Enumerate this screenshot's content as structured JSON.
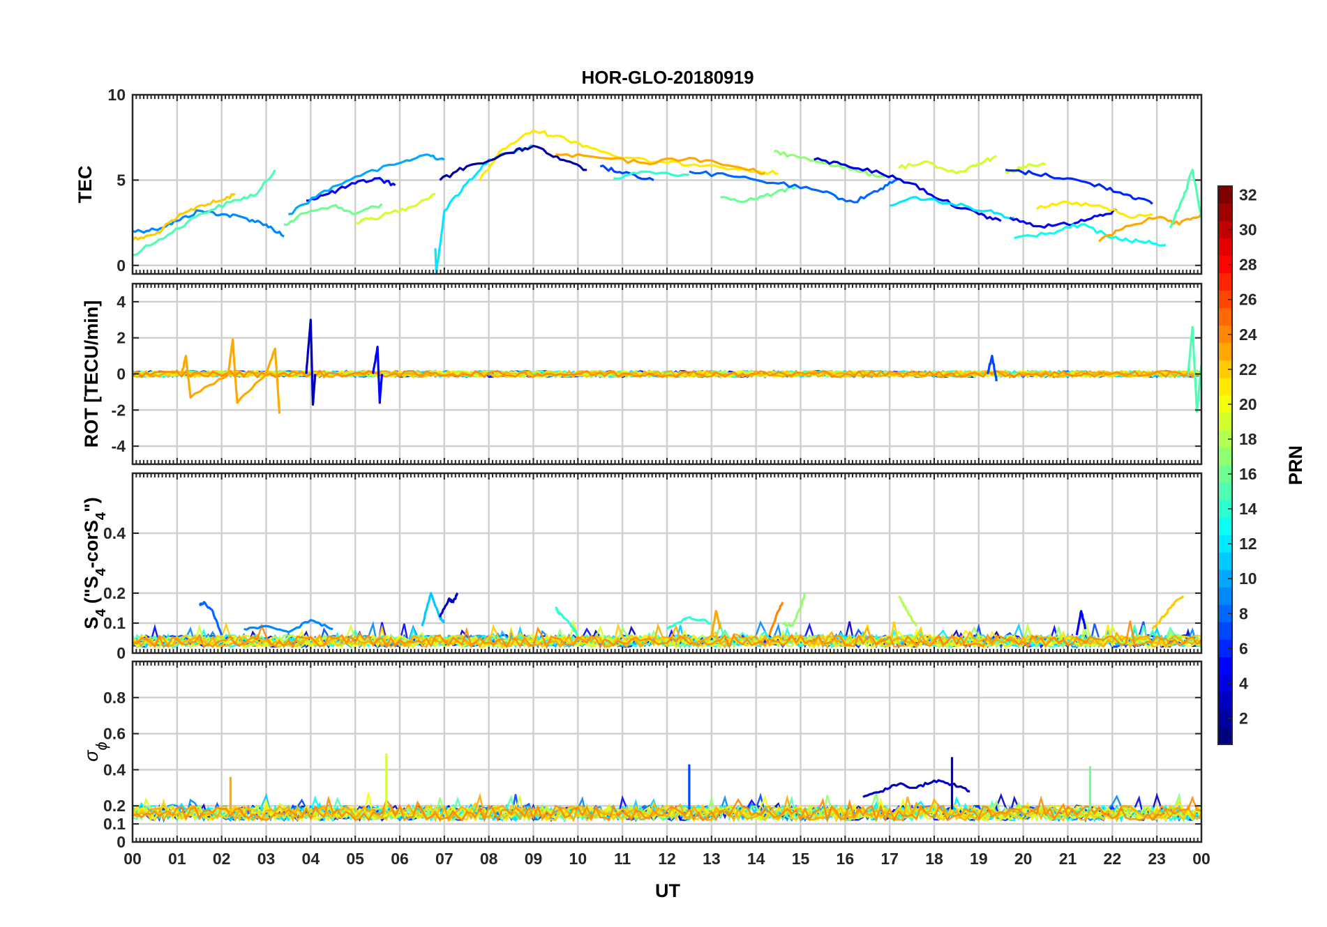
{
  "chart_data": {
    "type": "line",
    "title": "HOR-GLO-20180919",
    "xlabel": "UT",
    "x_tick_labels": [
      "00",
      "01",
      "02",
      "03",
      "04",
      "05",
      "06",
      "07",
      "08",
      "09",
      "10",
      "11",
      "12",
      "13",
      "14",
      "15",
      "16",
      "17",
      "18",
      "19",
      "20",
      "21",
      "22",
      "23",
      "00"
    ],
    "xlim": [
      0,
      24
    ],
    "grid": true,
    "colorbar": {
      "label": "PRN",
      "colormap": "jet",
      "range": [
        1,
        32
      ],
      "tick_labels": [
        "2",
        "4",
        "6",
        "8",
        "10",
        "12",
        "14",
        "16",
        "18",
        "20",
        "22",
        "24",
        "26",
        "28",
        "30",
        "32"
      ],
      "placement": "right"
    },
    "panels": [
      {
        "id": "tec",
        "ylabel": "TEC",
        "ylim": [
          -0.5,
          10
        ],
        "y_ticks": [
          0,
          5,
          10
        ],
        "y_tick_labels": [
          "0",
          "5",
          "10"
        ],
        "series": [
          {
            "prn": 9,
            "x": [
              0,
              0.5,
              1,
              1.5,
              2,
              2.5,
              3,
              3.4
            ],
            "y": [
              2.0,
              2.1,
              2.6,
              3.2,
              3.0,
              2.8,
              2.4,
              1.7
            ]
          },
          {
            "prn": 22,
            "x": [
              0,
              0.5,
              1,
              1.5,
              2,
              2.3
            ],
            "y": [
              1.5,
              1.8,
              2.8,
              3.5,
              3.8,
              4.2
            ]
          },
          {
            "prn": 15,
            "x": [
              0,
              0.8,
              1.5,
              2.2,
              2.8,
              3.2
            ],
            "y": [
              0.6,
              1.8,
              3.0,
              3.7,
              4.2,
              5.6
            ]
          },
          {
            "prn": 16,
            "x": [
              3.4,
              4,
              4.5,
              5,
              5.6
            ],
            "y": [
              2.4,
              3.2,
              3.5,
              3.0,
              3.6
            ]
          },
          {
            "prn": 5,
            "x": [
              3.9,
              4.4,
              5,
              5.5,
              5.9
            ],
            "y": [
              3.8,
              4.2,
              4.8,
              5.1,
              4.7
            ]
          },
          {
            "prn": 10,
            "x": [
              3.5,
              4.2,
              5,
              6,
              6.6,
              7
            ],
            "y": [
              3.0,
              4.2,
              5.2,
              6.0,
              6.5,
              6.2
            ]
          },
          {
            "prn": 19,
            "x": [
              5.0,
              5.6,
              6.2,
              6.8
            ],
            "y": [
              2.5,
              2.9,
              3.4,
              4.2
            ]
          },
          {
            "prn": 12,
            "x": [
              6.8,
              6.82,
              7.0,
              7.5,
              8.0,
              8.5,
              9.0
            ],
            "y": [
              1.0,
              -0.5,
              3.2,
              4.8,
              6.2,
              6.6,
              7.0
            ]
          },
          {
            "prn": 21,
            "x": [
              7.8,
              8.3,
              9.0,
              9.5,
              10.2,
              11,
              12,
              13,
              14,
              14.5
            ],
            "y": [
              5.0,
              6.8,
              7.9,
              7.6,
              7.0,
              6.3,
              6.0,
              5.9,
              5.5,
              5.4
            ]
          },
          {
            "prn": 2,
            "x": [
              6.9,
              7.5,
              8.5,
              9.0,
              9.6,
              10.2
            ],
            "y": [
              5.0,
              5.8,
              6.6,
              7.0,
              6.2,
              5.6
            ]
          },
          {
            "prn": 7,
            "x": [
              10.5,
              11,
              11.7
            ],
            "y": [
              5.8,
              5.4,
              5.0
            ]
          },
          {
            "prn": 23,
            "x": [
              9.5,
              10.5,
              11.5,
              12.5,
              13.5,
              14.2
            ],
            "y": [
              6.5,
              6.3,
              6.0,
              6.3,
              5.8,
              5.4
            ]
          },
          {
            "prn": 14,
            "x": [
              10.8,
              11.5,
              12.5
            ],
            "y": [
              5.1,
              5.5,
              5.3
            ]
          },
          {
            "prn": 16,
            "x": [
              13.2,
              13.8,
              14.4,
              14.9
            ],
            "y": [
              4.0,
              3.8,
              4.2,
              4.6
            ]
          },
          {
            "prn": 17,
            "x": [
              14.4,
              15.0,
              15.6,
              16.3,
              16.9
            ],
            "y": [
              6.7,
              6.3,
              6.0,
              5.5,
              5.2
            ]
          },
          {
            "prn": 8,
            "x": [
              12.5,
              13.5,
              14.5,
              15.5,
              16.2,
              16.8,
              17.2
            ],
            "y": [
              5.5,
              5.2,
              4.8,
              4.3,
              3.7,
              4.5,
              5.1
            ]
          },
          {
            "prn": 4,
            "x": [
              15.3,
              16.0,
              16.8,
              17.5,
              18.2,
              19.0,
              19.5
            ],
            "y": [
              6.2,
              5.9,
              5.4,
              4.8,
              3.8,
              3.0,
              2.6
            ]
          },
          {
            "prn": 12,
            "x": [
              17.0,
              17.6,
              18.4,
              19.2,
              19.8
            ],
            "y": [
              3.5,
              4.0,
              3.6,
              3.2,
              2.8
            ]
          },
          {
            "prn": 19,
            "x": [
              17.2,
              17.8,
              18.5,
              19.0,
              19.4
            ],
            "y": [
              5.7,
              6.1,
              5.4,
              6.0,
              6.4
            ]
          },
          {
            "prn": 19,
            "x": [
              19.6,
              20.0,
              20.5
            ],
            "y": [
              5.4,
              5.8,
              5.9
            ]
          },
          {
            "prn": 6,
            "x": [
              19.6,
              20.2,
              21.0,
              21.8,
              22.4,
              22.9
            ],
            "y": [
              5.6,
              5.4,
              5.1,
              4.6,
              4.1,
              3.6
            ]
          },
          {
            "prn": 5,
            "x": [
              19.7,
              20.3,
              21.0,
              21.6,
              22.1
            ],
            "y": [
              2.8,
              2.3,
              2.4,
              2.9,
              3.2
            ]
          },
          {
            "prn": 21,
            "x": [
              20.3,
              21.0,
              21.8,
              22.4,
              22.9
            ],
            "y": [
              3.3,
              3.7,
              3.4,
              2.8,
              3.0
            ]
          },
          {
            "prn": 13,
            "x": [
              19.8,
              20.6,
              21.3,
              22.0,
              22.6,
              23.2
            ],
            "y": [
              1.6,
              1.9,
              2.4,
              1.6,
              1.4,
              1.2
            ]
          },
          {
            "prn": 23,
            "x": [
              21.7,
              22.3,
              23.0,
              23.5,
              24.0
            ],
            "y": [
              1.4,
              2.3,
              2.8,
              2.4,
              3.0
            ]
          },
          {
            "prn": 15,
            "x": [
              23.3,
              23.6,
              23.8,
              24.0
            ],
            "y": [
              2.2,
              4.0,
              5.6,
              2.8
            ]
          }
        ]
      },
      {
        "id": "rot",
        "ylabel": "ROT [TECU/min]",
        "ylim": [
          -5,
          5
        ],
        "y_ticks": [
          -4,
          -2,
          0,
          2,
          4
        ],
        "y_tick_labels": [
          "-4",
          "-2",
          "0",
          "2",
          "4"
        ],
        "series": [
          {
            "prn": 23,
            "x": [
              1.1,
              1.2,
              1.3,
              2.15,
              2.25,
              2.35,
              3.0,
              3.2,
              3.3
            ],
            "y": [
              0,
              1.0,
              -1.3,
              0,
              1.9,
              -1.6,
              0,
              1.4,
              -2.2
            ]
          },
          {
            "prn": 3,
            "x": [
              3.9,
              4.0,
              4.05,
              4.1
            ],
            "y": [
              0,
              3.0,
              -1.7,
              0
            ]
          },
          {
            "prn": 5,
            "x": [
              5.4,
              5.5,
              5.55,
              5.6
            ],
            "y": [
              0,
              1.5,
              -1.6,
              0
            ]
          },
          {
            "prn": 15,
            "x": [
              23.7,
              23.8,
              23.9,
              24.0
            ],
            "y": [
              0,
              2.6,
              -2.1,
              0.5
            ]
          },
          {
            "prn": 7,
            "x": [
              19.2,
              19.3,
              19.4
            ],
            "y": [
              0,
              1.0,
              -0.4
            ]
          }
        ],
        "baseline": "0 with small fluctuations for all PRNs"
      },
      {
        "id": "s4",
        "ylabel": "S_4 (\"S_4-corS_4\")",
        "ylim": [
          0,
          0.6
        ],
        "y_ticks": [
          0,
          0.1,
          0.2,
          0.4
        ],
        "y_tick_labels": [
          "0",
          "0.1",
          "0.2",
          "0.4"
        ],
        "series": [
          {
            "prn": 8,
            "x": [
              1.5,
              1.6,
              1.8,
              2.0
            ],
            "y": [
              0.16,
              0.17,
              0.14,
              0.06
            ]
          },
          {
            "prn": 9,
            "x": [
              2.5,
              3.0,
              3.5,
              4.0,
              4.5
            ],
            "y": [
              0.08,
              0.09,
              0.07,
              0.11,
              0.08
            ]
          },
          {
            "prn": 11,
            "x": [
              6.5,
              6.7,
              6.9,
              7.0
            ],
            "y": [
              0.09,
              0.2,
              0.12,
              0.1
            ]
          },
          {
            "prn": 3,
            "x": [
              6.9,
              7.1,
              7.2,
              7.3
            ],
            "y": [
              0.12,
              0.18,
              0.17,
              0.2
            ]
          },
          {
            "prn": 14,
            "x": [
              9.5,
              9.6,
              9.8,
              10.0
            ],
            "y": [
              0.15,
              0.13,
              0.1,
              0.06
            ]
          },
          {
            "prn": 14,
            "x": [
              12.0,
              12.5,
              13.0
            ],
            "y": [
              0.08,
              0.12,
              0.1
            ]
          },
          {
            "prn": 23,
            "x": [
              13.0,
              13.1,
              13.2
            ],
            "y": [
              0.06,
              0.14,
              0.08
            ]
          },
          {
            "prn": 24,
            "x": [
              14.3,
              14.5,
              14.6
            ],
            "y": [
              0.06,
              0.14,
              0.17
            ]
          },
          {
            "prn": 17,
            "x": [
              14.6,
              14.8,
              15.0,
              15.1
            ],
            "y": [
              0.1,
              0.09,
              0.15,
              0.2
            ]
          },
          {
            "prn": 18,
            "x": [
              17.2,
              17.4,
              17.6
            ],
            "y": [
              0.19,
              0.14,
              0.09
            ]
          },
          {
            "prn": 5,
            "x": [
              21.2,
              21.3,
              21.4
            ],
            "y": [
              0.06,
              0.14,
              0.08
            ]
          },
          {
            "prn": 22,
            "x": [
              22.9,
              23.2,
              23.4,
              23.6
            ],
            "y": [
              0.08,
              0.13,
              0.17,
              0.19
            ]
          }
        ],
        "baseline": "0.02-0.05 for all PRNs"
      },
      {
        "id": "sigma_phi",
        "ylabel": "σ_ϕ",
        "ylim": [
          0,
          1
        ],
        "y_ticks": [
          0,
          0.1,
          0.2,
          0.4,
          0.6,
          0.8
        ],
        "y_tick_labels": [
          "0",
          "0.1",
          "0.2",
          "0.4",
          "0.6",
          "0.8"
        ],
        "series": [
          {
            "prn": 19,
            "x": [
              5.7
            ],
            "y": [
              0.49
            ]
          },
          {
            "prn": 7,
            "x": [
              12.5
            ],
            "y": [
              0.43
            ]
          },
          {
            "prn": 3,
            "x": [
              18.4
            ],
            "y": [
              0.47
            ]
          },
          {
            "prn": 16,
            "x": [
              21.5
            ],
            "y": [
              0.42
            ]
          },
          {
            "prn": 23,
            "x": [
              2.2
            ],
            "y": [
              0.36
            ]
          },
          {
            "prn": 3,
            "x": [
              16.4,
              16.8,
              17.2,
              17.6,
              18.0,
              18.4,
              18.8
            ],
            "y": [
              0.25,
              0.28,
              0.32,
              0.3,
              0.34,
              0.32,
              0.28
            ]
          }
        ],
        "baseline": "0.12-0.22 for all PRNs"
      }
    ]
  }
}
